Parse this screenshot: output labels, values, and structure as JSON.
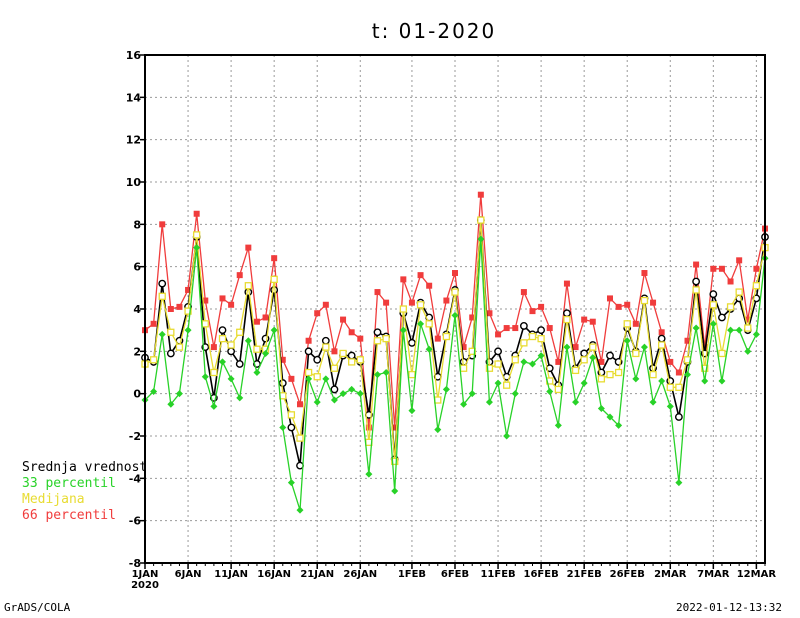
{
  "chart_data": {
    "type": "line",
    "title": "t: 01-2020",
    "ylim": [
      -8,
      16
    ],
    "yticks": [
      -8,
      -6,
      -4,
      -2,
      0,
      2,
      4,
      6,
      8,
      10,
      12,
      14,
      16
    ],
    "grid": true,
    "legend_position": "left-bottom-outside",
    "x_ticks": [
      {
        "day": 0,
        "label": "1JAN",
        "sublabel": "2020"
      },
      {
        "day": 5,
        "label": "6JAN"
      },
      {
        "day": 10,
        "label": "11JAN"
      },
      {
        "day": 15,
        "label": "16JAN"
      },
      {
        "day": 20,
        "label": "21JAN"
      },
      {
        "day": 25,
        "label": "26JAN"
      },
      {
        "day": 31,
        "label": "1FEB"
      },
      {
        "day": 36,
        "label": "6FEB"
      },
      {
        "day": 41,
        "label": "11FEB"
      },
      {
        "day": 46,
        "label": "16FEB"
      },
      {
        "day": 51,
        "label": "21FEB"
      },
      {
        "day": 56,
        "label": "26FEB"
      },
      {
        "day": 61,
        "label": "2MAR"
      },
      {
        "day": 66,
        "label": "7MAR"
      },
      {
        "day": 71,
        "label": "12MAR"
      }
    ],
    "series": [
      {
        "name": "66 percentil",
        "color": "#f03c3c",
        "marker": "square",
        "values": [
          3.0,
          3.3,
          8.0,
          4.0,
          4.1,
          4.9,
          8.5,
          4.4,
          2.2,
          4.5,
          4.2,
          5.6,
          6.9,
          3.4,
          3.6,
          6.4,
          1.6,
          0.7,
          -0.5,
          2.5,
          3.8,
          4.2,
          2.0,
          3.5,
          2.9,
          2.6,
          -1.6,
          4.8,
          4.3,
          -1.6,
          5.4,
          4.3,
          5.6,
          5.1,
          2.6,
          4.4,
          5.7,
          2.2,
          3.6,
          9.4,
          3.8,
          2.8,
          3.1,
          3.1,
          4.8,
          3.9,
          4.1,
          3.1,
          1.5,
          5.2,
          2.2,
          3.5,
          3.4,
          1.5,
          4.5,
          4.1,
          4.2,
          3.3,
          5.7,
          4.3,
          2.9,
          1.5,
          1.0,
          2.5,
          6.1,
          2.2,
          5.9,
          5.9,
          5.3,
          6.3,
          3.5,
          5.9,
          7.8
        ]
      },
      {
        "name": "Srednja vrednost",
        "color": "#000000",
        "marker": "circle",
        "values": [
          1.7,
          1.5,
          5.2,
          1.9,
          2.5,
          4.1,
          7.4,
          2.2,
          -0.2,
          3.0,
          2.0,
          1.4,
          4.8,
          1.4,
          2.6,
          4.9,
          0.5,
          -1.6,
          -3.4,
          2.0,
          1.6,
          2.5,
          0.2,
          1.8,
          1.8,
          1.5,
          -1.0,
          2.9,
          2.7,
          -3.1,
          3.8,
          2.4,
          4.3,
          3.6,
          0.8,
          2.8,
          4.9,
          1.5,
          1.8,
          8.2,
          1.5,
          2.0,
          0.8,
          1.8,
          3.2,
          2.8,
          3.0,
          1.2,
          0.4,
          3.8,
          1.2,
          1.9,
          2.3,
          1.0,
          1.8,
          1.5,
          3.1,
          2.0,
          4.5,
          1.2,
          2.6,
          0.6,
          -1.1,
          1.5,
          5.3,
          1.9,
          4.7,
          3.6,
          4.0,
          4.5,
          3.0,
          4.5,
          7.4
        ]
      },
      {
        "name": "Medijana",
        "color": "#e8dc32",
        "marker": "square-open",
        "values": [
          1.4,
          1.6,
          4.6,
          2.9,
          2.2,
          3.9,
          7.5,
          3.3,
          1.0,
          2.6,
          2.3,
          2.9,
          5.1,
          2.1,
          2.1,
          5.4,
          -0.1,
          -1.0,
          -2.1,
          1.0,
          0.8,
          2.2,
          1.2,
          1.9,
          1.5,
          1.6,
          -2.3,
          2.5,
          2.6,
          -3.2,
          4.0,
          0.9,
          4.2,
          3.3,
          -0.3,
          2.7,
          4.8,
          1.2,
          2.0,
          8.2,
          1.2,
          1.4,
          0.4,
          1.6,
          2.4,
          2.7,
          2.6,
          0.6,
          0.2,
          3.5,
          1.1,
          1.6,
          2.2,
          0.7,
          0.9,
          1.0,
          3.3,
          1.9,
          4.4,
          0.9,
          2.3,
          0.3,
          0.3,
          1.6,
          4.9,
          1.2,
          4.2,
          1.9,
          4.1,
          4.8,
          3.1,
          5.1,
          6.9
        ]
      },
      {
        "name": "33 percentil",
        "color": "#28d228",
        "marker": "diamond",
        "values": [
          -0.3,
          0.1,
          2.8,
          -0.5,
          0.0,
          3.0,
          6.9,
          0.8,
          -0.6,
          1.5,
          0.7,
          -0.2,
          2.5,
          1.0,
          1.9,
          3.0,
          -1.6,
          -4.2,
          -5.5,
          0.7,
          -0.4,
          0.7,
          -0.3,
          0.0,
          0.2,
          0.0,
          -3.8,
          0.9,
          1.0,
          -4.6,
          3.0,
          -0.8,
          3.3,
          2.1,
          -1.7,
          0.2,
          3.7,
          -0.5,
          0.0,
          7.3,
          -0.4,
          0.5,
          -2.0,
          0.0,
          1.5,
          1.4,
          1.8,
          0.1,
          -1.5,
          2.2,
          -0.4,
          0.5,
          1.7,
          -0.7,
          -1.1,
          -1.5,
          2.5,
          0.7,
          2.2,
          -0.4,
          0.6,
          -0.6,
          -4.2,
          0.9,
          3.1,
          0.6,
          3.3,
          0.6,
          3.0,
          3.0,
          2.0,
          2.8,
          6.4
        ]
      }
    ]
  },
  "legend": [
    {
      "label": "Srednja vrednost",
      "color": "#000000"
    },
    {
      "label": "33 percentil",
      "color": "#28d228"
    },
    {
      "label": "Medijana",
      "color": "#e8dc32"
    },
    {
      "label": "66 percentil",
      "color": "#f03c3c"
    }
  ],
  "footer": {
    "left": "GrADS/COLA",
    "right": "2022-01-12-13:32"
  }
}
